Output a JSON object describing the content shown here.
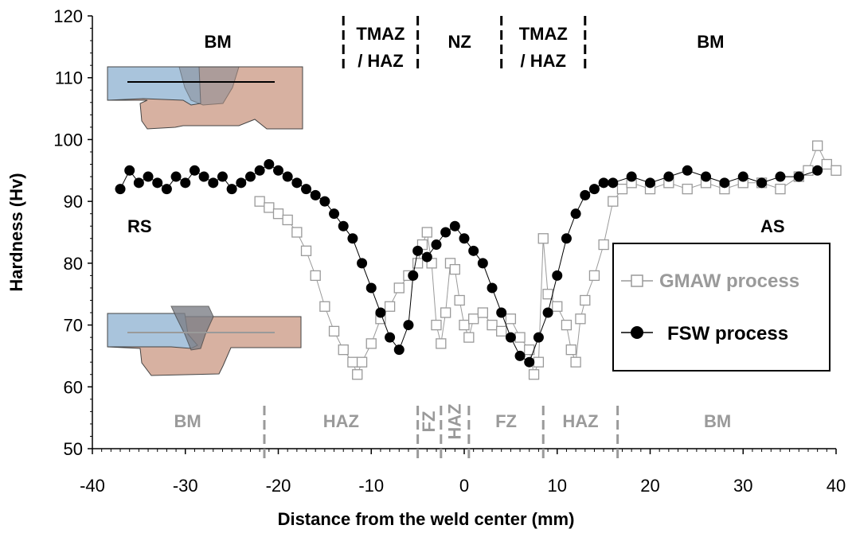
{
  "chart_data": {
    "type": "scatter",
    "xlabel": "Distance from the weld center (mm)",
    "ylabel": "Hardness (Hv)",
    "xlim": [
      -40,
      40
    ],
    "ylim": [
      50,
      120
    ],
    "xticks": [
      -40,
      -30,
      -20,
      -10,
      0,
      10,
      20,
      30,
      40
    ],
    "yticks": [
      50,
      60,
      70,
      80,
      90,
      100,
      110,
      120
    ],
    "grid": false,
    "legend_position": "right",
    "series": [
      {
        "name": "GMAW process",
        "marker": "open-square",
        "color": "#9a9a9a",
        "x": [
          -22,
          -21,
          -20,
          -19,
          -18,
          -17,
          -16,
          -15,
          -14,
          -13,
          -12,
          -11.5,
          -11,
          -10,
          -9,
          -8,
          -7,
          -6,
          -5,
          -4.5,
          -4,
          -3.5,
          -3,
          -2.5,
          -2,
          -1.5,
          -1,
          -0.5,
          0,
          0.5,
          1,
          2,
          3,
          4,
          5,
          6,
          7,
          7.5,
          8,
          8.5,
          9,
          10,
          11,
          11.5,
          12,
          12.5,
          13,
          14,
          15,
          16,
          17,
          18,
          20,
          22,
          24,
          26,
          28,
          30,
          32,
          34,
          36,
          37,
          38,
          39,
          40
        ],
        "y": [
          90,
          89,
          88,
          87,
          85,
          82,
          78,
          73,
          69,
          66,
          64,
          62,
          64,
          67,
          71,
          73,
          76,
          78,
          80,
          83,
          85,
          80,
          70,
          67,
          72,
          80,
          79,
          74,
          70,
          68,
          71,
          72,
          70,
          69,
          71,
          68,
          66,
          62,
          64,
          84,
          75,
          73,
          70,
          66,
          64,
          71,
          74,
          78,
          83,
          90,
          92,
          93,
          92,
          93,
          92,
          93,
          92,
          93,
          93,
          92,
          94,
          95,
          99,
          96,
          95
        ]
      },
      {
        "name": "FSW process",
        "marker": "filled-circle",
        "color": "#000000",
        "x": [
          -37,
          -36,
          -35,
          -34,
          -33,
          -32,
          -31,
          -30,
          -29,
          -28,
          -27,
          -26,
          -25,
          -24,
          -23,
          -22,
          -21,
          -20,
          -19,
          -18,
          -17,
          -16,
          -15,
          -14,
          -13,
          -12,
          -11,
          -10,
          -9,
          -8,
          -7,
          -6,
          -5.5,
          -5,
          -4,
          -3,
          -2,
          -1,
          0,
          1,
          2,
          3,
          4,
          5,
          6,
          7,
          8,
          9,
          10,
          11,
          12,
          13,
          14,
          15,
          16,
          18,
          20,
          22,
          24,
          26,
          28,
          30,
          32,
          34,
          36,
          38
        ],
        "y": [
          92,
          95,
          93,
          94,
          93,
          92,
          94,
          93,
          95,
          94,
          93,
          94,
          92,
          93,
          94,
          95,
          96,
          95,
          94,
          93,
          92,
          91,
          90,
          88,
          86,
          84,
          80,
          76,
          72,
          68,
          66,
          70,
          78,
          82,
          81,
          83,
          85,
          86,
          84,
          82,
          80,
          76,
          72,
          68,
          65,
          64,
          68,
          72,
          78,
          84,
          88,
          91,
          92,
          93,
          93,
          94,
          93,
          94,
          95,
          94,
          93,
          94,
          93,
          94,
          94,
          95
        ]
      }
    ],
    "zones_top": [
      {
        "label": "BM",
        "line2": ""
      },
      {
        "label": "TMAZ",
        "line2": "/ HAZ"
      },
      {
        "label": "NZ",
        "line2": ""
      },
      {
        "label": "TMAZ",
        "line2": "/ HAZ"
      },
      {
        "label": "BM",
        "line2": ""
      }
    ],
    "zones_top_bounds": [
      -13,
      -5,
      4,
      13
    ],
    "zones_bottom": [
      "BM",
      "HAZ",
      "FZ",
      "HAZ",
      "FZ",
      "HAZ",
      "BM"
    ],
    "zones_bottom_bounds": [
      -21.5,
      -5,
      -2.5,
      0.5,
      8.5,
      16.5
    ],
    "annotations": [
      "RS",
      "AS"
    ]
  },
  "colors": {
    "gmaw": "#9a9a9a",
    "fsw": "#000000",
    "plate_left": "#a9c4dc",
    "plate_right": "#d7b1a1"
  }
}
